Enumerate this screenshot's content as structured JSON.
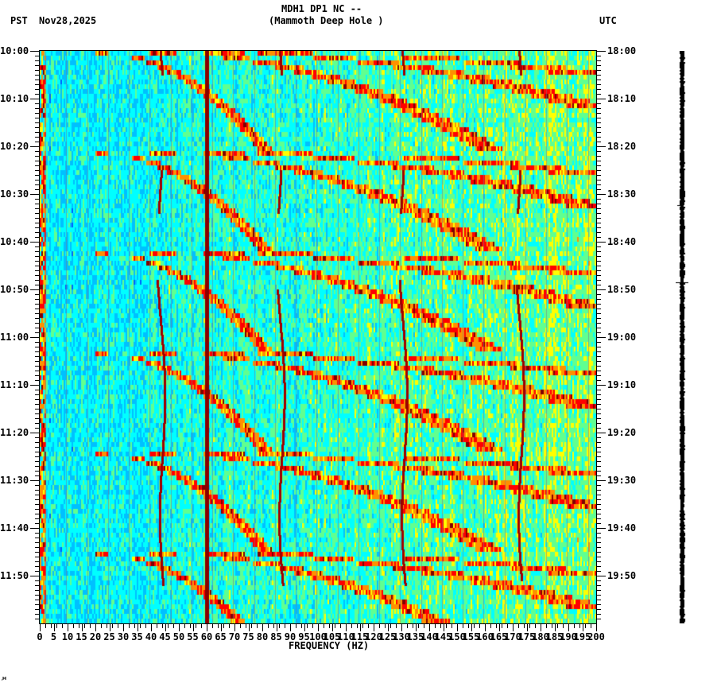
{
  "header": {
    "station_line": "MDH1 DP1 NC --",
    "station_name": "(Mammoth Deep Hole )",
    "left_timezone": "PST",
    "date": "Nov28,2025",
    "right_timezone": "UTC"
  },
  "footer": {
    "corner_mark": "⸱𝅘"
  },
  "chart_data": {
    "type": "heatmap",
    "title": "MDH1 DP1 NC -- (Mammoth Deep Hole )",
    "subtitle": "Nov28,2025",
    "xlabel": "FREQUENCY (HZ)",
    "ylabel_left": "PST",
    "ylabel_right": "UTC",
    "xlim": [
      0,
      200
    ],
    "x_ticks": [
      0,
      5,
      10,
      15,
      20,
      25,
      30,
      35,
      40,
      45,
      50,
      55,
      60,
      65,
      70,
      75,
      80,
      85,
      90,
      95,
      100,
      105,
      110,
      115,
      120,
      125,
      130,
      135,
      140,
      145,
      150,
      155,
      160,
      165,
      170,
      175,
      180,
      185,
      190,
      195,
      200
    ],
    "y_ticks_left": [
      "10:00",
      "10:10",
      "10:20",
      "10:30",
      "10:40",
      "10:50",
      "11:00",
      "11:10",
      "11:20",
      "11:30",
      "11:40",
      "11:50"
    ],
    "y_ticks_right": [
      "18:00",
      "18:10",
      "18:20",
      "18:30",
      "18:40",
      "18:50",
      "19:00",
      "19:10",
      "19:20",
      "19:30",
      "19:40",
      "19:50"
    ],
    "time_range_minutes": 120,
    "minor_tick_interval_minutes": 1,
    "colormap": [
      "#0000b0",
      "#0060ff",
      "#00c0ff",
      "#00ffff",
      "#60ff90",
      "#ffff00",
      "#ff9000",
      "#ff0000",
      "#800000"
    ],
    "background_level": "blue-cyan noise",
    "features": [
      {
        "name": "persistent 60 Hz line",
        "freq_hz": 60,
        "start_min": 0,
        "end_min": 120,
        "intensity": "dark red"
      },
      {
        "name": "low-frequency edge energy",
        "freq_hz": 1,
        "start_min": 0,
        "end_min": 120,
        "intensity": "orange/red intermittent"
      },
      {
        "name": "wandering line ~43 Hz",
        "freq_hz": 43,
        "segments": [
          [
            0,
            5
          ],
          [
            25,
            34
          ],
          [
            48,
            112
          ]
        ],
        "intensity": "dark red"
      },
      {
        "name": "wandering line ~86 Hz",
        "freq_hz": 86,
        "segments": [
          [
            0,
            5
          ],
          [
            25,
            34
          ],
          [
            50,
            112
          ]
        ],
        "intensity": "dark red"
      },
      {
        "name": "wandering line ~130 Hz",
        "freq_hz": 130,
        "segments": [
          [
            0,
            5
          ],
          [
            25,
            34
          ],
          [
            48,
            112
          ]
        ],
        "intensity": "dark red"
      },
      {
        "name": "wandering line ~172 Hz",
        "freq_hz": 172,
        "segments": [
          [
            0,
            5
          ],
          [
            25,
            34
          ],
          [
            49,
            111
          ]
        ],
        "intensity": "dark red"
      },
      {
        "name": "gliding arc harmonics",
        "period_min": 21,
        "start_min": 0,
        "end_min": 120,
        "freq_range_hz": [
          20,
          200
        ],
        "intensity": "yellow-red"
      }
    ]
  }
}
